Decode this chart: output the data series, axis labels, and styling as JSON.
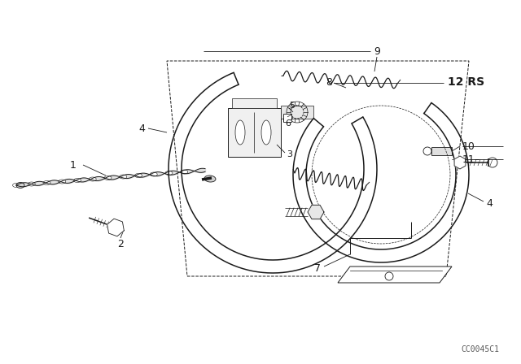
{
  "background_color": "#ffffff",
  "line_color": "#1a1a1a",
  "figsize": [
    6.4,
    4.48
  ],
  "dpi": 100,
  "watermark": "CC0045C1",
  "label_fs": 9,
  "lw_main": 1.1,
  "lw_thin": 0.7,
  "lw_leader": 0.6
}
